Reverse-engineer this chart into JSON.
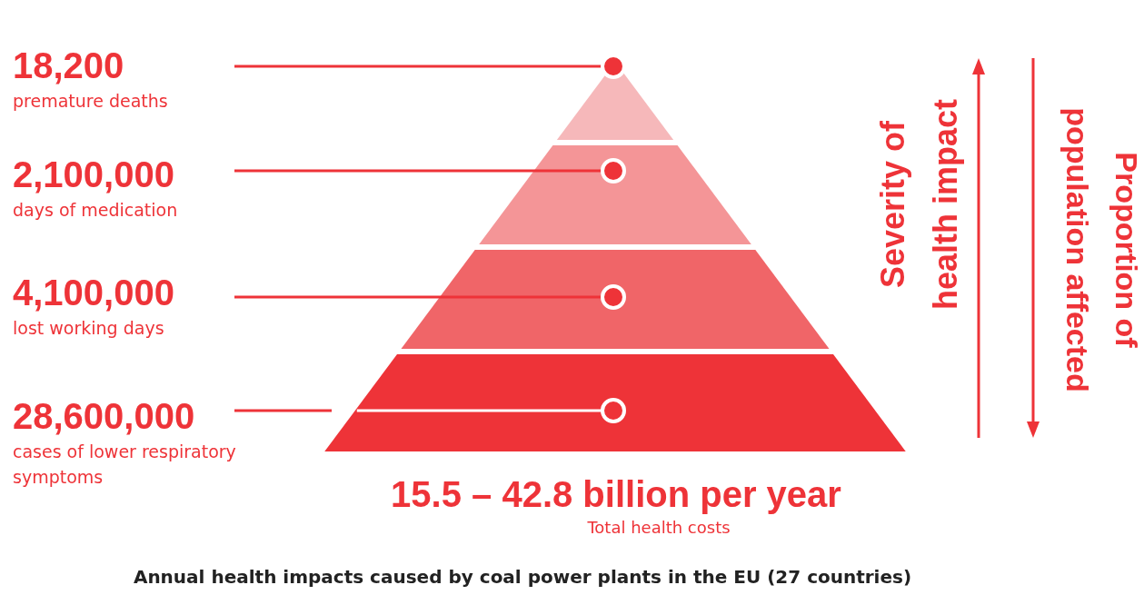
{
  "chart_data": {
    "type": "other",
    "title": "Annual health impacts caused by coal power plants in the EU (27 countries)",
    "categories": [
      "premature deaths",
      "days of medication",
      "lost working days",
      "cases of lower respiratory symptoms"
    ],
    "colors": [
      "#f6b8ba",
      "#f49597",
      "#f06568",
      "#ee3338"
    ],
    "values": [
      18200,
      2100000,
      4100000,
      28600000
    ],
    "value_labels": [
      "18,200",
      "2,100,000",
      "4,100,000",
      "28,600,000"
    ],
    "annotations": [
      "15.5 – 42.8 billion per year",
      "Total health costs",
      "Severity of health impact",
      "Proportion of population affected"
    ]
  }
}
